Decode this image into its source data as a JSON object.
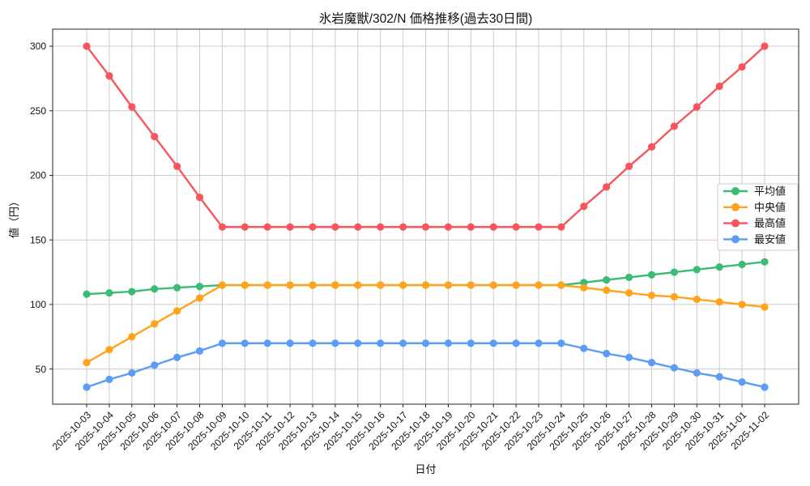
{
  "title": "氷岩魔獣/302/N 価格推移(過去30日間)",
  "chart_data": {
    "type": "line",
    "title": "氷岩魔獣/302/N 価格推移(過去30日間)",
    "xlabel": "日付",
    "ylabel": "値（円）",
    "x": [
      "2025-10-03",
      "2025-10-04",
      "2025-10-05",
      "2025-10-06",
      "2025-10-07",
      "2025-10-08",
      "2025-10-09",
      "2025-10-10",
      "2025-10-11",
      "2025-10-12",
      "2025-10-13",
      "2025-10-14",
      "2025-10-15",
      "2025-10-16",
      "2025-10-17",
      "2025-10-18",
      "2025-10-19",
      "2025-10-20",
      "2025-10-21",
      "2025-10-22",
      "2025-10-23",
      "2025-10-24",
      "2025-10-25",
      "2025-10-26",
      "2025-10-27",
      "2025-10-28",
      "2025-10-29",
      "2025-10-30",
      "2025-10-31",
      "2025-11-01",
      "2025-11-02"
    ],
    "series": [
      {
        "name": "平均値",
        "color": "#3bbb75",
        "values": [
          108,
          109,
          110,
          112,
          113,
          114,
          115,
          115,
          115,
          115,
          115,
          115,
          115,
          115,
          115,
          115,
          115,
          115,
          115,
          115,
          115,
          115,
          117,
          119,
          121,
          123,
          125,
          127,
          129,
          131,
          133
        ]
      },
      {
        "name": "中央値",
        "color": "#ffa41c",
        "values": [
          55,
          65,
          75,
          85,
          95,
          105,
          115,
          115,
          115,
          115,
          115,
          115,
          115,
          115,
          115,
          115,
          115,
          115,
          115,
          115,
          115,
          115,
          113,
          111,
          109,
          107,
          106,
          104,
          102,
          100,
          98
        ]
      },
      {
        "name": "最高値",
        "color": "#f8555c",
        "values": [
          300,
          277,
          253,
          230,
          207,
          183,
          160,
          160,
          160,
          160,
          160,
          160,
          160,
          160,
          160,
          160,
          160,
          160,
          160,
          160,
          160,
          160,
          176,
          191,
          207,
          222,
          238,
          253,
          269,
          284,
          300
        ]
      },
      {
        "name": "最安値",
        "color": "#5d9cf5",
        "values": [
          36,
          42,
          47,
          53,
          59,
          64,
          70,
          70,
          70,
          70,
          70,
          70,
          70,
          70,
          70,
          70,
          70,
          70,
          70,
          70,
          70,
          70,
          66,
          62,
          59,
          55,
          51,
          47,
          44,
          40,
          36
        ]
      }
    ],
    "yticks": [
      50,
      100,
      150,
      200,
      250,
      300
    ],
    "ylim": [
      22.8,
      313.2
    ],
    "grid": true,
    "grid_color": "#cccccc",
    "spine_color": "#262626",
    "legend_position": "right",
    "legend_entries": [
      "平均値",
      "中央値",
      "最高値",
      "最安値"
    ],
    "background": "#ffffff"
  }
}
